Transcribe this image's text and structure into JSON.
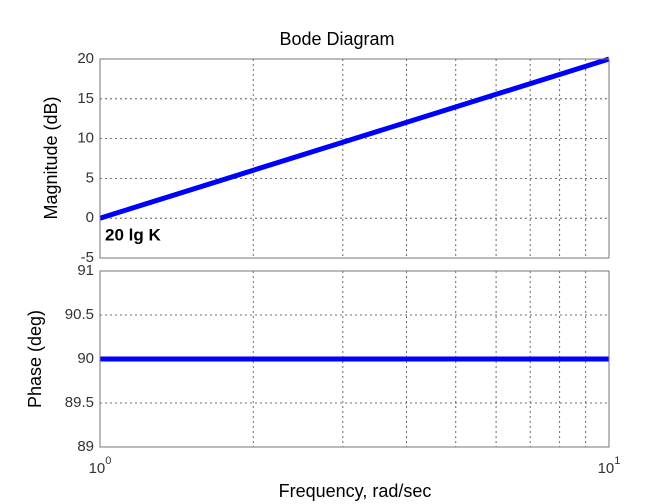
{
  "chart_data": [
    {
      "type": "line",
      "title": "Bode Diagram",
      "ylabel": "Magnitude (dB)",
      "annotation": "20 lg K",
      "xscale": "log",
      "xlim": [
        1,
        10
      ],
      "xgrid": [
        2,
        3,
        4,
        5,
        6,
        7,
        8,
        9
      ],
      "ylim": [
        -5,
        20
      ],
      "yticks": [
        -5,
        0,
        5,
        10,
        15,
        20
      ],
      "grid": true,
      "x": [
        1,
        10
      ],
      "series": [
        {
          "name": "Magnitude",
          "color": "#0000ff",
          "values": [
            0,
            20
          ]
        }
      ]
    },
    {
      "type": "line",
      "ylabel": "Phase (deg)",
      "xlabel": "Frequency, rad/sec",
      "xscale": "log",
      "xlim": [
        1,
        10
      ],
      "xgrid": [
        2,
        3,
        4,
        5,
        6,
        7,
        8,
        9
      ],
      "xticks": [
        {
          "value": 1,
          "label": "10",
          "exponent": "0"
        },
        {
          "value": 10,
          "label": "10",
          "exponent": "1"
        }
      ],
      "ylim": [
        89,
        91
      ],
      "yticks": [
        89,
        89.5,
        90,
        90.5,
        91
      ],
      "grid": true,
      "x": [
        1,
        10
      ],
      "series": [
        {
          "name": "Phase",
          "color": "#0000ff",
          "values": [
            90,
            90
          ]
        }
      ]
    }
  ]
}
